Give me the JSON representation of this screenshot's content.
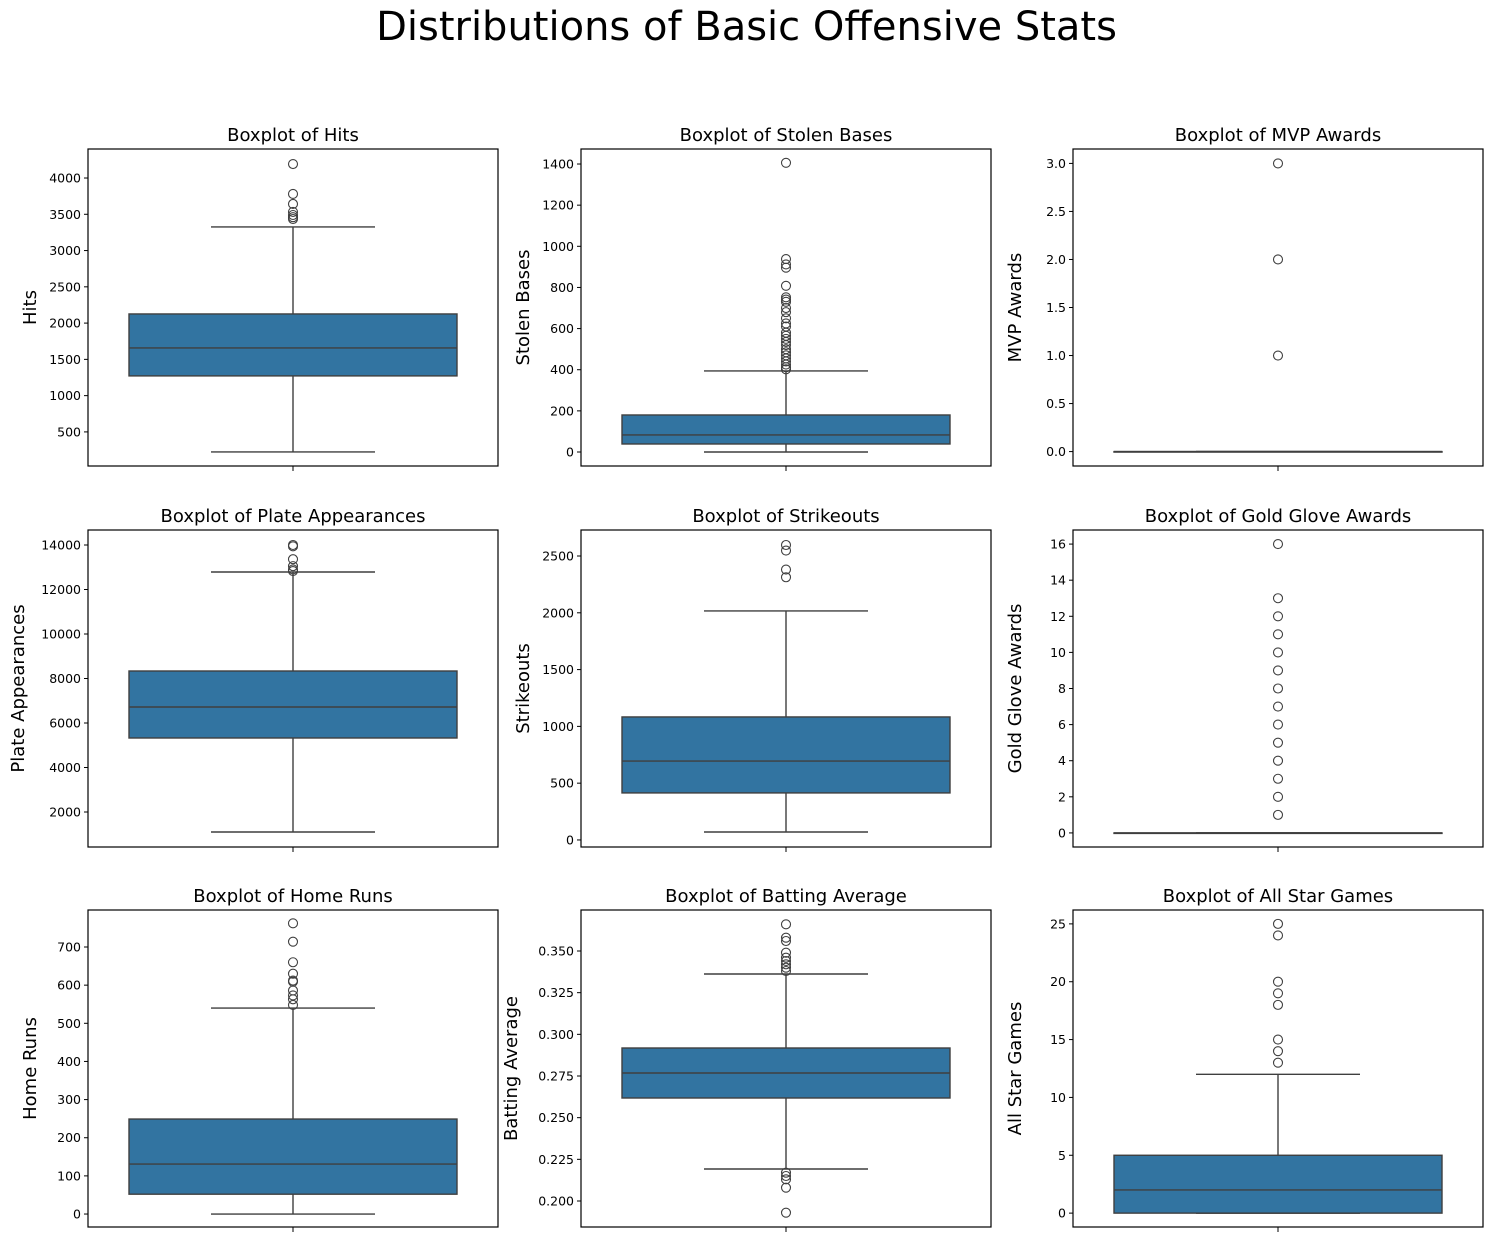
{
  "figure": {
    "title": "Distributions of Basic Offensive Stats",
    "box_color": "#3274a1",
    "line_color": "#3f3f3f"
  },
  "chart_data": [
    {
      "type": "box",
      "title": "Boxplot of Hits",
      "xlabel": "",
      "ylabel": "Hits",
      "ylim": [
        30,
        4400
      ],
      "yticks": [
        500,
        1000,
        1500,
        2000,
        2500,
        3000,
        3500,
        4000
      ],
      "ytick_labels": [
        "500",
        "1000",
        "1500",
        "2000",
        "2500",
        "3000",
        "3500",
        "4000"
      ],
      "stats": {
        "whisker_low": 224,
        "q1": 1272,
        "median": 1657,
        "q3": 2126,
        "whisker_high": 3325
      },
      "outliers": [
        4193,
        3780,
        3642,
        3532,
        3490,
        3460,
        3435
      ]
    },
    {
      "type": "box",
      "title": "Boxplot of Stolen Bases",
      "xlabel": "",
      "ylabel": "Stolen Bases",
      "ylim": [
        -68,
        1473
      ],
      "yticks": [
        0,
        200,
        400,
        600,
        800,
        1000,
        1200,
        1400
      ],
      "ytick_labels": [
        "0",
        "200",
        "400",
        "600",
        "800",
        "1000",
        "1200",
        "1400"
      ],
      "stats": {
        "whisker_low": 0,
        "q1": 39,
        "median": 83,
        "q3": 180,
        "whisker_high": 394
      },
      "outliers": [
        1406,
        938,
        912,
        896,
        808,
        752,
        741,
        730,
        700,
        680,
        650,
        625,
        610,
        580,
        565,
        550,
        535,
        520,
        500,
        485,
        470,
        455,
        440,
        425,
        412,
        402
      ]
    },
    {
      "type": "box",
      "title": "Boxplot of MVP Awards",
      "xlabel": "",
      "ylabel": "MVP Awards",
      "ylim": [
        -0.15,
        3.15
      ],
      "yticks": [
        0.0,
        0.5,
        1.0,
        1.5,
        2.0,
        2.5,
        3.0
      ],
      "ytick_labels": [
        "0.0",
        "0.5",
        "1.0",
        "1.5",
        "2.0",
        "2.5",
        "3.0"
      ],
      "stats": {
        "whisker_low": 0,
        "q1": 0,
        "median": 0,
        "q3": 0,
        "whisker_high": 0
      },
      "outliers": [
        3,
        2,
        1
      ]
    },
    {
      "type": "box",
      "title": "Boxplot of Plate Appearances",
      "xlabel": "",
      "ylabel": "Plate Appearances",
      "ylim": [
        427,
        14674
      ],
      "yticks": [
        2000,
        4000,
        6000,
        8000,
        10000,
        12000,
        14000
      ],
      "ytick_labels": [
        "2000",
        "4000",
        "6000",
        "8000",
        "10000",
        "12000",
        "14000"
      ],
      "stats": {
        "whisker_low": 1101,
        "q1": 5326,
        "median": 6719,
        "q3": 8337,
        "whisker_high": 12786
      },
      "outliers": [
        14000,
        13940,
        13360,
        13050,
        12900,
        12830
      ]
    },
    {
      "type": "box",
      "title": "Boxplot of Strikeouts",
      "xlabel": "",
      "ylabel": "Strikeouts",
      "ylim": [
        -62,
        2729
      ],
      "yticks": [
        0,
        500,
        1000,
        1500,
        2000,
        2500
      ],
      "ytick_labels": [
        "0",
        "500",
        "1000",
        "1500",
        "2000",
        "2500"
      ],
      "stats": {
        "whisker_low": 70,
        "q1": 414,
        "median": 695,
        "q3": 1083,
        "whisker_high": 2016
      },
      "outliers": [
        2597,
        2548,
        2381,
        2313
      ]
    },
    {
      "type": "box",
      "title": "Boxplot of Gold Glove Awards",
      "xlabel": "",
      "ylabel": "Gold Glove Awards",
      "ylim": [
        -0.78,
        16.78
      ],
      "yticks": [
        0,
        2,
        4,
        6,
        8,
        10,
        12,
        14,
        16
      ],
      "ytick_labels": [
        "0",
        "2",
        "4",
        "6",
        "8",
        "10",
        "12",
        "14",
        "16"
      ],
      "stats": {
        "whisker_low": 0,
        "q1": 0,
        "median": 0,
        "q3": 0,
        "whisker_high": 0
      },
      "outliers": [
        16,
        13,
        12,
        11,
        10,
        9,
        8,
        7,
        6,
        5,
        4,
        3,
        2,
        1
      ]
    },
    {
      "type": "box",
      "title": "Boxplot of Home Runs",
      "xlabel": "",
      "ylabel": "Home Runs",
      "ylim": [
        -34,
        797
      ],
      "yticks": [
        0,
        100,
        200,
        300,
        400,
        500,
        600,
        700
      ],
      "ytick_labels": [
        "0",
        "100",
        "200",
        "300",
        "400",
        "500",
        "600",
        "700"
      ],
      "stats": {
        "whisker_low": 0,
        "q1": 52,
        "median": 131,
        "q3": 249,
        "whisker_high": 540
      },
      "outliers": [
        762,
        714,
        660,
        630,
        612,
        609,
        586,
        573,
        563,
        548
      ]
    },
    {
      "type": "box",
      "title": "Boxplot of Batting Average",
      "xlabel": "",
      "ylabel": "Batting Average",
      "ylim": [
        0.1844,
        0.3746
      ],
      "yticks": [
        0.2,
        0.225,
        0.25,
        0.275,
        0.3,
        0.325,
        0.35
      ],
      "ytick_labels": [
        "0.200",
        "0.225",
        "0.250",
        "0.275",
        "0.300",
        "0.325",
        "0.350"
      ],
      "stats": {
        "whisker_low": 0.2192,
        "q1": 0.2618,
        "median": 0.2768,
        "q3": 0.2918,
        "whisker_high": 0.3362
      },
      "outliers": [
        0.366,
        0.358,
        0.356,
        0.349,
        0.346,
        0.344,
        0.342,
        0.34,
        0.338,
        0.217,
        0.215,
        0.213,
        0.208,
        0.193
      ]
    },
    {
      "type": "box",
      "title": "Boxplot of All Star Games",
      "xlabel": "",
      "ylabel": "All Star Games",
      "ylim": [
        -1.2,
        26.2
      ],
      "yticks": [
        0,
        5,
        10,
        15,
        20,
        25
      ],
      "ytick_labels": [
        "0",
        "5",
        "10",
        "15",
        "20",
        "25"
      ],
      "stats": {
        "whisker_low": 0,
        "q1": 0,
        "median": 2,
        "q3": 5,
        "whisker_high": 12
      },
      "outliers": [
        25,
        24,
        20,
        19,
        18,
        15,
        14,
        13
      ]
    }
  ]
}
